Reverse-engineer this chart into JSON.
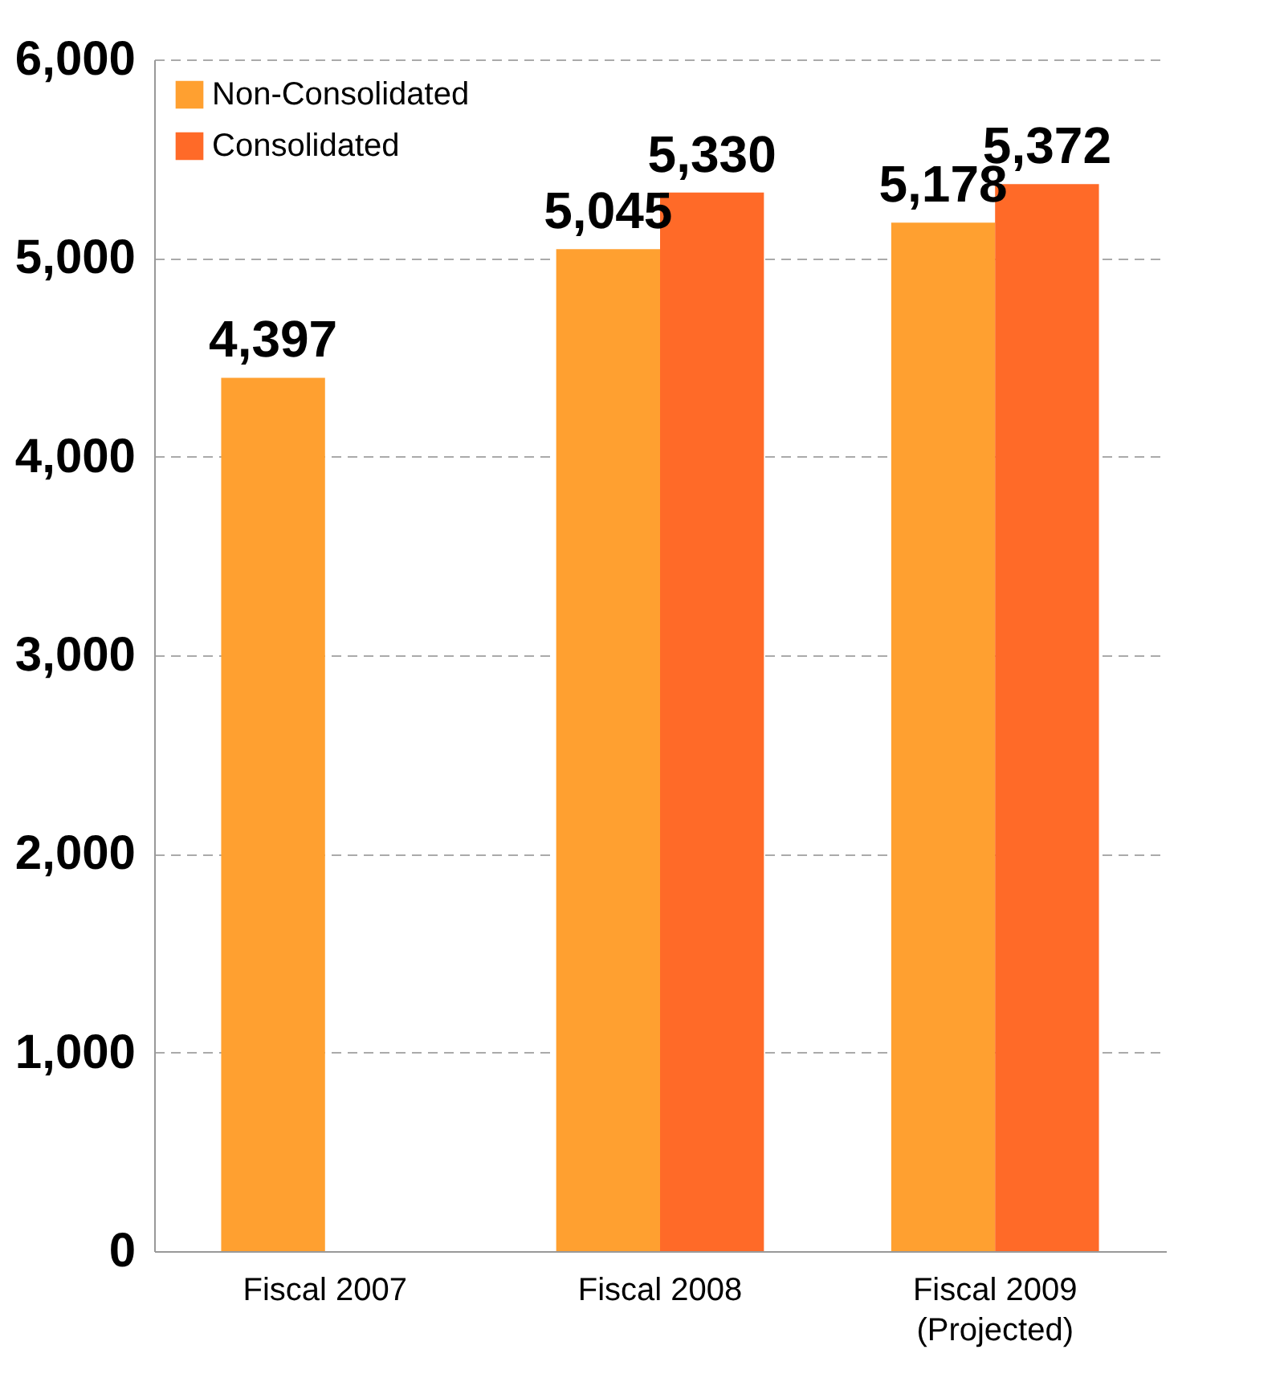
{
  "chart_data": {
    "type": "bar",
    "categories": [
      "Fiscal 2007",
      "Fiscal 2008",
      "Fiscal 2009\n(Projected)"
    ],
    "series": [
      {
        "name": "Non-Consolidated",
        "color": "#ffa030",
        "values": [
          4397,
          5045,
          5178
        ],
        "value_labels": [
          "4,397",
          "5,045",
          "5,178"
        ]
      },
      {
        "name": "Consolidated",
        "color": "#ff6a28",
        "values": [
          null,
          5330,
          5372
        ],
        "value_labels": [
          null,
          "5,330",
          "5,372"
        ]
      }
    ],
    "ylim": [
      0,
      6000
    ],
    "yticks": [
      {
        "value": 0,
        "label": "0"
      },
      {
        "value": 1000,
        "label": "1,000"
      },
      {
        "value": 2000,
        "label": "2,000"
      },
      {
        "value": 3000,
        "label": "3,000"
      },
      {
        "value": 4000,
        "label": "4,000"
      },
      {
        "value": 5000,
        "label": "5,000"
      },
      {
        "value": 6000,
        "label": "6,000"
      }
    ],
    "grid": "y",
    "legend": "top left"
  }
}
